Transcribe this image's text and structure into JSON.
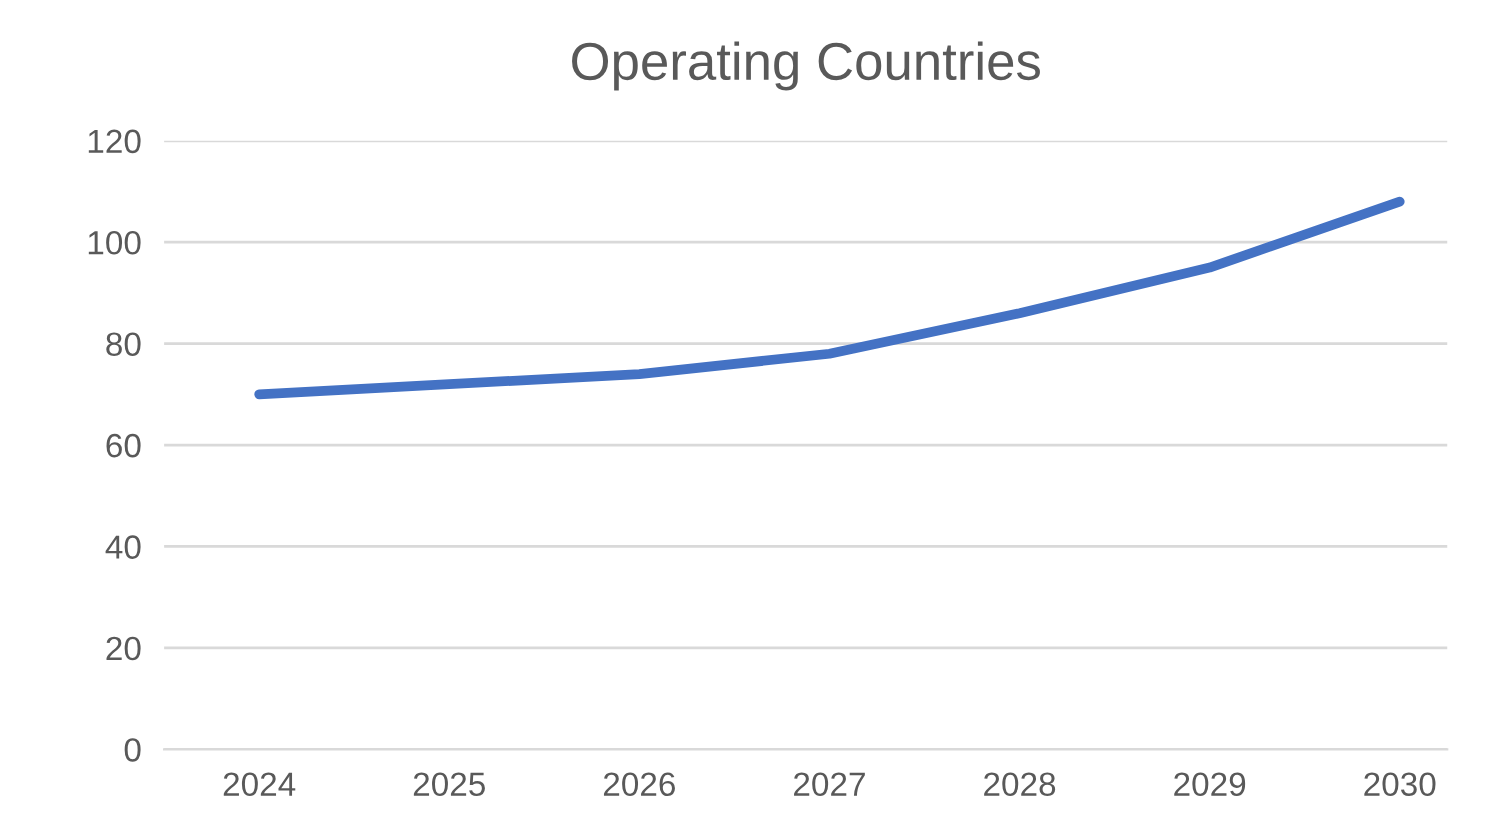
{
  "chart_data": {
    "type": "line",
    "title": "Operating Countries",
    "categories": [
      "2024",
      "2025",
      "2026",
      "2027",
      "2028",
      "2029",
      "2030"
    ],
    "series": [
      {
        "color": "#4472c4",
        "values": [
          70,
          72,
          74,
          78,
          86,
          95,
          108
        ]
      }
    ],
    "ylim": [
      0,
      120
    ],
    "yticks": [
      0,
      20,
      40,
      60,
      80,
      100,
      120
    ],
    "grid": "y",
    "marker": "none",
    "line_style": "solid"
  }
}
